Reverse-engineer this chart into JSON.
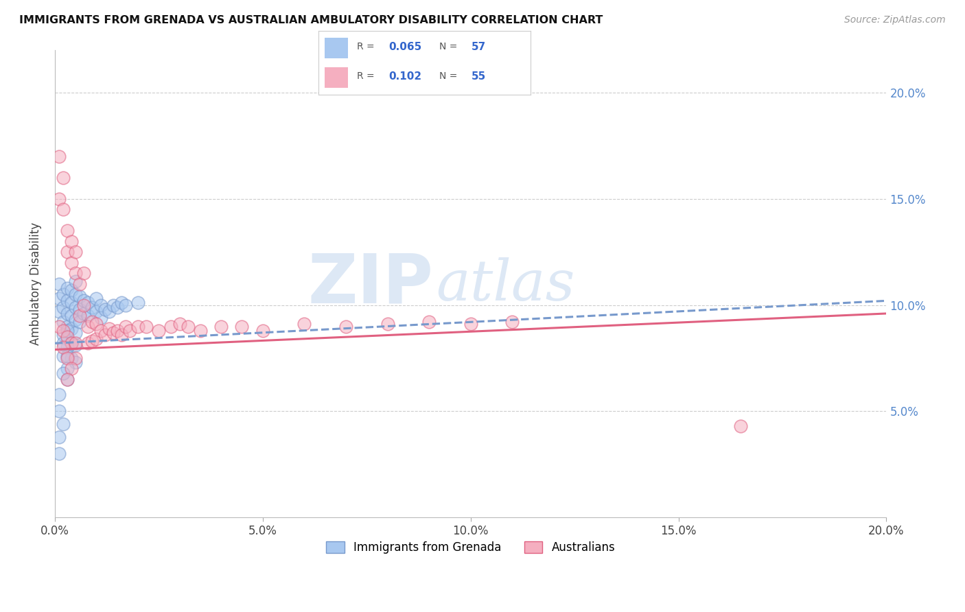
{
  "title": "IMMIGRANTS FROM GRENADA VS AUSTRALIAN AMBULATORY DISABILITY CORRELATION CHART",
  "source_text": "Source: ZipAtlas.com",
  "ylabel": "Ambulatory Disability",
  "series": [
    {
      "label": "Immigrants from Grenada",
      "R": 0.065,
      "N": 57,
      "color": "#a8c8f0",
      "line_color": "#7799cc",
      "line_style": "--",
      "trend_start": 0.082,
      "trend_end": 0.102,
      "x": [
        0.001,
        0.001,
        0.001,
        0.002,
        0.002,
        0.002,
        0.003,
        0.003,
        0.003,
        0.003,
        0.003,
        0.004,
        0.004,
        0.004,
        0.004,
        0.005,
        0.005,
        0.005,
        0.005,
        0.005,
        0.005,
        0.006,
        0.006,
        0.006,
        0.007,
        0.007,
        0.008,
        0.008,
        0.009,
        0.01,
        0.01,
        0.011,
        0.011,
        0.012,
        0.013,
        0.014,
        0.015,
        0.016,
        0.017,
        0.02,
        0.002,
        0.003,
        0.004,
        0.005,
        0.003,
        0.004,
        0.002,
        0.003,
        0.003,
        0.002,
        0.001,
        0.001,
        0.002,
        0.001,
        0.001,
        0.003,
        0.002
      ],
      "y": [
        0.11,
        0.103,
        0.097,
        0.105,
        0.099,
        0.092,
        0.108,
        0.102,
        0.096,
        0.09,
        0.084,
        0.107,
        0.101,
        0.095,
        0.089,
        0.111,
        0.105,
        0.099,
        0.093,
        0.087,
        0.081,
        0.104,
        0.098,
        0.092,
        0.102,
        0.096,
        0.101,
        0.095,
        0.099,
        0.103,
        0.097,
        0.1,
        0.094,
        0.098,
        0.097,
        0.1,
        0.099,
        0.101,
        0.1,
        0.101,
        0.086,
        0.08,
        0.075,
        0.073,
        0.088,
        0.082,
        0.076,
        0.07,
        0.076,
        0.082,
        0.058,
        0.05,
        0.044,
        0.038,
        0.03,
        0.065,
        0.068
      ]
    },
    {
      "label": "Australians",
      "R": 0.102,
      "N": 55,
      "color": "#f5afc0",
      "line_color": "#e06080",
      "line_style": "-",
      "trend_start": 0.079,
      "trend_end": 0.096,
      "x": [
        0.001,
        0.001,
        0.001,
        0.002,
        0.002,
        0.002,
        0.003,
        0.003,
        0.003,
        0.004,
        0.004,
        0.004,
        0.005,
        0.005,
        0.005,
        0.005,
        0.006,
        0.006,
        0.007,
        0.007,
        0.008,
        0.008,
        0.009,
        0.009,
        0.01,
        0.01,
        0.011,
        0.012,
        0.013,
        0.014,
        0.015,
        0.016,
        0.017,
        0.018,
        0.02,
        0.022,
        0.025,
        0.028,
        0.03,
        0.032,
        0.035,
        0.04,
        0.045,
        0.05,
        0.06,
        0.07,
        0.08,
        0.09,
        0.1,
        0.11,
        0.002,
        0.003,
        0.004,
        0.003,
        0.165
      ],
      "y": [
        0.17,
        0.15,
        0.09,
        0.16,
        0.145,
        0.088,
        0.135,
        0.125,
        0.085,
        0.13,
        0.12,
        0.082,
        0.125,
        0.115,
        0.082,
        0.075,
        0.11,
        0.095,
        0.115,
        0.1,
        0.09,
        0.082,
        0.092,
        0.083,
        0.091,
        0.084,
        0.088,
        0.086,
        0.089,
        0.087,
        0.088,
        0.086,
        0.09,
        0.088,
        0.09,
        0.09,
        0.088,
        0.09,
        0.091,
        0.09,
        0.088,
        0.09,
        0.09,
        0.088,
        0.091,
        0.09,
        0.091,
        0.092,
        0.091,
        0.092,
        0.08,
        0.075,
        0.07,
        0.065,
        0.043
      ]
    }
  ],
  "xlim": [
    0.0,
    0.2
  ],
  "ylim": [
    0.0,
    0.22
  ],
  "yticks": [
    0.05,
    0.1,
    0.15,
    0.2
  ],
  "ytick_labels": [
    "5.0%",
    "10.0%",
    "15.0%",
    "20.0%"
  ],
  "xticks": [
    0.0,
    0.05,
    0.1,
    0.15,
    0.2
  ],
  "xtick_labels": [
    "0.0%",
    "5.0%",
    "10.0%",
    "15.0%",
    "20.0%"
  ],
  "grid_color": "#cccccc",
  "background_color": "#ffffff"
}
